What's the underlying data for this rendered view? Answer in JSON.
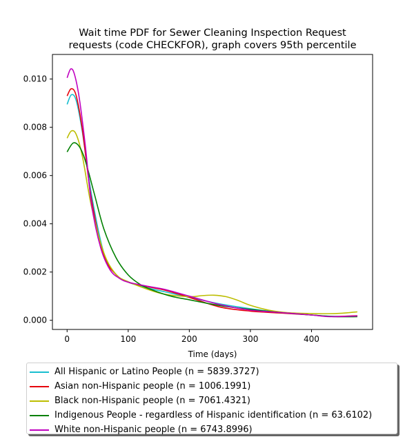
{
  "chart_data": {
    "type": "line",
    "title": "Wait time PDF for Sewer Cleaning Inspection Request requests (code CHECKFOR), graph covers 95th percentile",
    "title_lines": [
      "Wait time PDF for Sewer Cleaning Inspection Request",
      "requests (code CHECKFOR), graph covers 95th percentile"
    ],
    "xlabel": "Time (days)",
    "ylabel": "",
    "xlim": [
      -24,
      500
    ],
    "ylim": [
      -0.00038,
      0.01102
    ],
    "x_ticks": [
      0,
      100,
      200,
      300,
      400
    ],
    "y_ticks": [
      0.0,
      0.002,
      0.004,
      0.006,
      0.008,
      0.01
    ],
    "y_tick_labels": [
      "0.000",
      "0.002",
      "0.004",
      "0.006",
      "0.008",
      "0.010"
    ],
    "grid": false,
    "legend_placement": "below",
    "series": [
      {
        "name": "All Hispanic or Latino People (n = 5839.3727)",
        "color": "#17becf",
        "x": [
          0,
          7,
          15,
          25,
          40,
          60,
          80,
          100,
          130,
          160,
          200,
          250,
          300,
          350,
          400,
          430,
          475
        ],
        "y": [
          0.00895,
          0.00935,
          0.0091,
          0.0078,
          0.0052,
          0.0028,
          0.0019,
          0.00158,
          0.00135,
          0.00118,
          0.00095,
          0.00068,
          0.00048,
          0.00032,
          0.00022,
          0.00017,
          0.00016
        ]
      },
      {
        "name": "Asian non-Hispanic people (n = 1006.1991)",
        "color": "#e6000b",
        "x": [
          0,
          7,
          15,
          25,
          40,
          60,
          80,
          100,
          130,
          160,
          200,
          250,
          300,
          350,
          400,
          430,
          475
        ],
        "y": [
          0.0093,
          0.0096,
          0.0093,
          0.0079,
          0.005,
          0.0027,
          0.0019,
          0.00158,
          0.0014,
          0.00125,
          0.00095,
          0.00055,
          0.00038,
          0.0003,
          0.00022,
          0.00016,
          0.00019
        ]
      },
      {
        "name": "Black non-Hispanic people (n = 7061.4321)",
        "color": "#bcbd00",
        "x": [
          0,
          7,
          15,
          25,
          40,
          60,
          80,
          100,
          130,
          160,
          200,
          220,
          240,
          260,
          280,
          300,
          330,
          360,
          400,
          440,
          475
        ],
        "y": [
          0.00755,
          0.00785,
          0.0077,
          0.0068,
          0.0047,
          0.0028,
          0.0019,
          0.0016,
          0.0013,
          0.00108,
          0.00098,
          0.00102,
          0.00104,
          0.00098,
          0.00082,
          0.00062,
          0.00042,
          0.00032,
          0.00028,
          0.00028,
          0.00035
        ]
      },
      {
        "name": "Indigenous People - regardless of Hispanic identification (n = 63.6102)",
        "color": "#008000",
        "x": [
          0,
          10,
          20,
          30,
          45,
          60,
          80,
          100,
          120,
          140,
          170,
          200,
          230,
          260,
          300,
          350,
          400,
          440,
          475
        ],
        "y": [
          0.00698,
          0.00735,
          0.0072,
          0.0066,
          0.0052,
          0.0038,
          0.0026,
          0.00188,
          0.00148,
          0.00125,
          0.001,
          0.00085,
          0.0007,
          0.00057,
          0.00045,
          0.00032,
          0.00022,
          0.00015,
          0.00015
        ]
      },
      {
        "name": "White non-Hispanic people (n = 6743.8996)",
        "color": "#c000c0",
        "x": [
          0,
          6,
          12,
          20,
          30,
          40,
          55,
          70,
          85,
          100,
          130,
          160,
          200,
          250,
          300,
          350,
          400,
          430,
          475
        ],
        "y": [
          0.01005,
          0.01042,
          0.0102,
          0.0092,
          0.0072,
          0.0048,
          0.003,
          0.0021,
          0.00175,
          0.00158,
          0.00142,
          0.00128,
          0.001,
          0.00065,
          0.00042,
          0.00032,
          0.00022,
          0.00015,
          0.00018
        ]
      }
    ]
  }
}
